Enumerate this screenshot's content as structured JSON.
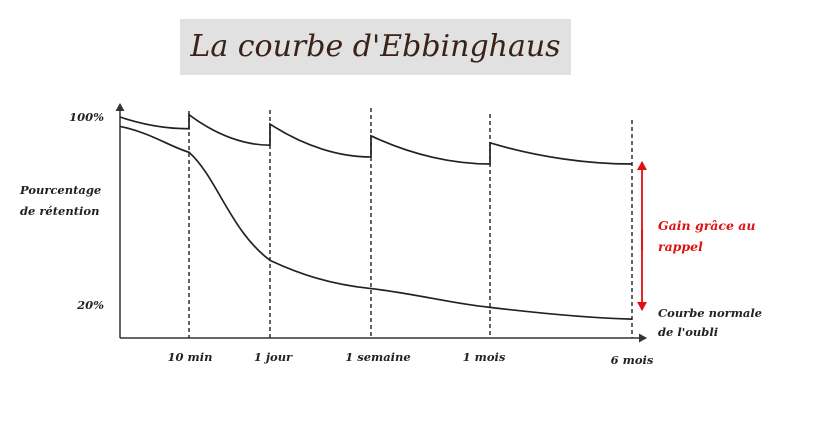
{
  "chart_data": {
    "type": "line",
    "title": "La courbe d'Ebbinghaus",
    "ylabel_lines": [
      "Pourcentage",
      "de rétention"
    ],
    "y_ticks": [
      "100%",
      "20%"
    ],
    "categories": [
      "10 min",
      "1 jour",
      "1 semaine",
      "1 mois",
      "6 mois"
    ],
    "ylim": [
      20,
      100
    ],
    "series": [
      {
        "name_lines": [
          "Courbe normale",
          "de l'oubli"
        ],
        "points": [
          [
            0,
            96
          ],
          [
            1,
            85
          ],
          [
            2,
            39
          ],
          [
            3,
            27
          ],
          [
            4,
            19
          ],
          [
            5,
            14
          ]
        ]
      },
      {
        "name": "",
        "points": [
          [
            0,
            100
          ],
          [
            1,
            95
          ],
          [
            1,
            101
          ],
          [
            2,
            88
          ],
          [
            2,
            97
          ],
          [
            3,
            83
          ],
          [
            3,
            92
          ],
          [
            4,
            80
          ],
          [
            4,
            89
          ],
          [
            5,
            80
          ]
        ]
      }
    ],
    "annotation_lines": [
      "Gain grâce au",
      "rappel"
    ],
    "grid": false,
    "vertical_dashed_markers": [
      "10 min",
      "1 jour",
      "1 semaine",
      "1 mois",
      "6 mois"
    ]
  },
  "colors": {
    "title_bg": "#e1e1e1",
    "title_text": "#3a2218",
    "axis": "#333333",
    "curve": "#222222",
    "annotation": "#e01010"
  }
}
